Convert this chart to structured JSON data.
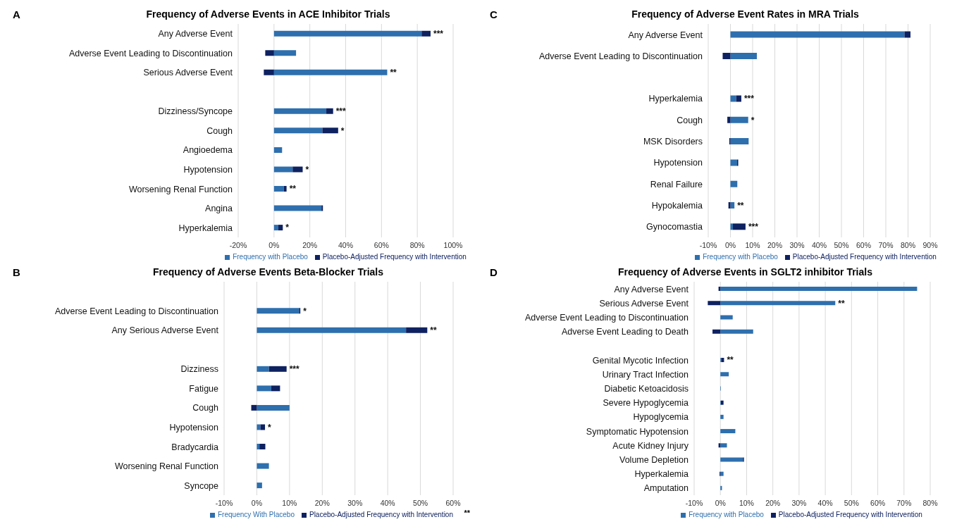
{
  "chart_data": [
    {
      "type": "bar",
      "orientation": "horizontal",
      "stacked": true,
      "title": "Frequency of Adverse Events in ACE Inhibitor Trials",
      "categories": [
        "Any Adverse Event",
        "Adverse Event Leading to  Discontinuation",
        "Serious Adverse Event",
        null,
        "Dizziness/Syncope",
        "Cough",
        "Angioedema",
        "Hypotension",
        "Worsening Renal Function",
        "Angina",
        "Hyperkalemia"
      ],
      "series": [
        {
          "name": "Frequency with Placebo",
          "color": "#2e6fae",
          "values": [
            82.4,
            12.3,
            63.2,
            null,
            29.2,
            27,
            4.5,
            10.4,
            5.5,
            26.5,
            2.4
          ]
        },
        {
          "name": "Placebo-Adjusted Frequency with Intervention",
          "color": "#0e2160",
          "values": [
            5,
            -4.9,
            -5.7,
            null,
            3.8,
            8.8,
            0,
            5.6,
            1.5,
            0.8,
            2.5
          ]
        }
      ],
      "xlim": [
        -20,
        100
      ],
      "xticks": [
        {
          "value": -20,
          "label": "-20%"
        },
        {
          "value": 0,
          "label": "0%"
        },
        {
          "value": 20,
          "label": "20%"
        },
        {
          "value": 40,
          "label": "40%"
        },
        {
          "value": 60,
          "label": "60%"
        },
        {
          "value": 80,
          "label": "80%"
        },
        {
          "value": 100,
          "label": "100%"
        }
      ],
      "grid": "x",
      "legend": "bottom",
      "annotations": [
        "A",
        {
          "text": "***",
          "x": 87.4,
          "y": "Any Adverse Event"
        },
        {
          "text": "**",
          "x": 63.2,
          "y": "Serious Adverse Event"
        },
        {
          "text": "***",
          "x": 33,
          "y": "Dizziness/Syncope"
        },
        {
          "text": "*",
          "x": 35.8,
          "y": "Cough"
        },
        {
          "text": "*",
          "x": 16,
          "y": "Hypotension"
        },
        {
          "text": "**",
          "x": 7,
          "y": "Worsening Renal Function"
        },
        {
          "text": "*",
          "x": 4.9,
          "y": "Hyperkalemia"
        }
      ]
    },
    {
      "type": "bar",
      "orientation": "horizontal",
      "stacked": true,
      "title": "Frequency of Adverse Event Rates in MRA Trials",
      "categories": [
        "Any Adverse Event",
        "Adverse Event Leading to Discontinuation",
        null,
        "Hyperkalemia",
        "Cough",
        "MSK Disorders",
        "Hypotension",
        "Renal Failure",
        "Hypokalemia",
        "Gynocomastia"
      ],
      "series": [
        {
          "name": "Frequency with Placebo",
          "color": "#2e6fae",
          "values": [
            78.4,
            11.9,
            null,
            2.6,
            8,
            8.2,
            3,
            3.1,
            1.8,
            1.1
          ]
        },
        {
          "name": "Placebo-Adjusted Frequency with Intervention",
          "color": "#0e2160",
          "values": [
            2.7,
            -3.5,
            null,
            2.3,
            -1.4,
            -0.5,
            0.5,
            0,
            -0.9,
            5.7
          ]
        }
      ],
      "xlim": [
        -10,
        90
      ],
      "xticks": [
        {
          "value": -10,
          "label": "-10%"
        },
        {
          "value": 0,
          "label": "0%"
        },
        {
          "value": 10,
          "label": "10%"
        },
        {
          "value": 20,
          "label": "20%"
        },
        {
          "value": 30,
          "label": "30%"
        },
        {
          "value": 40,
          "label": "40%"
        },
        {
          "value": 50,
          "label": "50%"
        },
        {
          "value": 60,
          "label": "60%"
        },
        {
          "value": 70,
          "label": "70%"
        },
        {
          "value": 80,
          "label": "80%"
        },
        {
          "value": 90,
          "label": "90%"
        }
      ],
      "grid": "x",
      "legend": "bottom",
      "annotations": [
        "C",
        {
          "text": "***",
          "x": 4.9,
          "y": "Hyperkalemia"
        },
        {
          "text": "*",
          "x": 8,
          "y": "Cough"
        },
        {
          "text": "**",
          "x": 1.8,
          "y": "Hypokalemia"
        },
        {
          "text": "***",
          "x": 6.8,
          "y": "Gynocomastia"
        }
      ]
    },
    {
      "type": "bar",
      "orientation": "horizontal",
      "stacked": true,
      "title": "Frequency of Adverse Events Beta-Blocker Trials",
      "categories": [
        null,
        "Adverse Event Leading to Discontinuation",
        "Any Serious Adverse Event",
        null,
        "Dizziness",
        "Fatigue",
        "Cough",
        "Hypotension",
        "Bradycardia",
        "Worsening Renal Function",
        "Syncope"
      ],
      "series": [
        {
          "name": "Frequency With Placebo",
          "color": "#2e6fae",
          "values": [
            null,
            12.9,
            45.6,
            null,
            3.7,
            4.4,
            10,
            1.1,
            0.8,
            3.7,
            1.6
          ]
        },
        {
          "name": "Placebo-Adjusted Frequency with Intervention",
          "color": "#0e2160",
          "values": [
            null,
            0.4,
            6.5,
            null,
            5.4,
            2.7,
            -1.7,
            1.4,
            1.8,
            0,
            0
          ]
        }
      ],
      "xlim": [
        -10,
        60
      ],
      "xticks": [
        {
          "value": -10,
          "label": "-10%"
        },
        {
          "value": 0,
          "label": "0%"
        },
        {
          "value": 10,
          "label": "10%"
        },
        {
          "value": 20,
          "label": "20%"
        },
        {
          "value": 30,
          "label": "30%"
        },
        {
          "value": 40,
          "label": "40%"
        },
        {
          "value": 50,
          "label": "50%"
        },
        {
          "value": 60,
          "label": "60%"
        }
      ],
      "grid": "x",
      "legend": "bottom",
      "annotations": [
        "B",
        {
          "text": "*",
          "x": 13.3,
          "y": "Adverse Event Leading to Discontinuation"
        },
        {
          "text": "**",
          "x": 52.1,
          "y": "Any Serious Adverse Event"
        },
        {
          "text": "***",
          "x": 9.1,
          "y": "Dizziness"
        },
        {
          "text": "*",
          "x": 2.5,
          "y": "Hypotension"
        },
        "**"
      ]
    },
    {
      "type": "bar",
      "orientation": "horizontal",
      "stacked": true,
      "title": "Frequency of Adverse Events in SGLT2 inhibitor Trials",
      "categories": [
        "Any Adverse Event",
        "Serious Adverse Event",
        "Adverse Event Leading to Discontinuation",
        "Adverse Event Leading to Death",
        null,
        "Genital Mycotic Infection",
        "Urinary Tract Infection",
        "Diabetic Ketoacidosis",
        "Severe Hypoglycemia",
        "Hypoglycemia",
        "Symptomatic Hypotension",
        "Acute Kidney Injury",
        "Volume Depletion",
        "Hyperkalemia",
        "Amputation"
      ],
      "series": [
        {
          "name": "Frequency with Placebo",
          "color": "#2e6fae",
          "values": [
            75,
            43.8,
            4.7,
            12.5,
            null,
            0.3,
            3.2,
            0.2,
            0.2,
            1.2,
            5.7,
            2.5,
            8.6,
            1.2,
            0.6
          ]
        },
        {
          "name": "Placebo-Adjusted Frequency with Intervention",
          "color": "#0e2160",
          "values": [
            -0.7,
            -4.8,
            0,
            -3,
            null,
            1.1,
            0,
            0,
            1,
            0,
            0,
            -0.7,
            0.4,
            -0.3,
            0
          ]
        }
      ],
      "xlim": [
        -10,
        80
      ],
      "xticks": [
        {
          "value": -10,
          "label": "-10%"
        },
        {
          "value": 0,
          "label": "0%"
        },
        {
          "value": 10,
          "label": "10%"
        },
        {
          "value": 20,
          "label": "20%"
        },
        {
          "value": 30,
          "label": "30%"
        },
        {
          "value": 40,
          "label": "40%"
        },
        {
          "value": 50,
          "label": "50%"
        },
        {
          "value": 60,
          "label": "60%"
        },
        {
          "value": 70,
          "label": "70%"
        },
        {
          "value": 80,
          "label": "80%"
        }
      ],
      "grid": "x",
      "legend": "bottom",
      "annotations": [
        "D",
        {
          "text": "**",
          "x": 43.8,
          "y": "Serious Adverse Event"
        },
        {
          "text": "**",
          "x": 1.4,
          "y": "Genital Mycotic Infection"
        }
      ]
    }
  ]
}
